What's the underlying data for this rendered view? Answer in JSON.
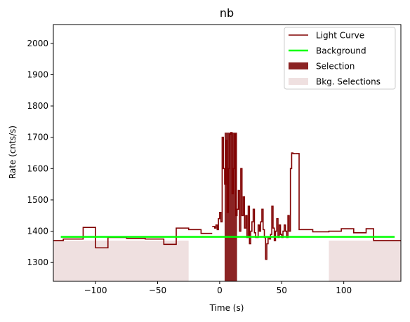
{
  "chart_data": {
    "type": "line",
    "title": "nb",
    "xlabel": "Time (s)",
    "ylabel": "Rate (cnts/s)",
    "xlim": [
      -134,
      146
    ],
    "ylim": [
      1240,
      2060
    ],
    "xticks": [
      -100,
      -50,
      0,
      50,
      100
    ],
    "xtick_labels": [
      "−100",
      "−50",
      "0",
      "50",
      "100"
    ],
    "yticks": [
      1300,
      1400,
      1500,
      1600,
      1700,
      1800,
      1900,
      2000
    ],
    "ytick_labels": [
      "1300",
      "1400",
      "1500",
      "1600",
      "1700",
      "1800",
      "1900",
      "2000"
    ],
    "grid": false,
    "legend_position": "top-right",
    "colors": {
      "light_curve": "#800000",
      "background": "#00ff00",
      "selection": "#8b2323",
      "bkg_selection": "#efe0e0",
      "axes": "#000000"
    },
    "legend": [
      {
        "label": "Light Curve",
        "kind": "line",
        "color": "#800000"
      },
      {
        "label": "Background",
        "kind": "line",
        "color": "#00ff00"
      },
      {
        "label": "Selection",
        "kind": "patch",
        "color": "#8b2323"
      },
      {
        "label": "Bkg. Selections",
        "kind": "patch",
        "color": "#efe0e0"
      }
    ],
    "series": [
      {
        "name": "Light Curve",
        "step": "post",
        "x": [
          -134,
          -126,
          -110,
          -100,
          -90,
          -75,
          -60,
          -45,
          -35,
          -25,
          -15,
          -6
        ],
        "y": [
          1370,
          1375,
          1412,
          1347,
          1380,
          1377,
          1375,
          1358,
          1410,
          1405,
          1393,
          1393
        ],
        "x2": [
          -6,
          -4,
          -3,
          -2,
          -1,
          0,
          1,
          2,
          3,
          4,
          5,
          6,
          7,
          8,
          9,
          10,
          11,
          12,
          13,
          14,
          15,
          16,
          17,
          18,
          19,
          20,
          21,
          22,
          23,
          24,
          25,
          26,
          27,
          28,
          29,
          30,
          31,
          32,
          33,
          34,
          35,
          36,
          37,
          38,
          39,
          40,
          41,
          42,
          43,
          44,
          45,
          46,
          47,
          48,
          49,
          50,
          51,
          52,
          53,
          54,
          55,
          56,
          57,
          58,
          59,
          60,
          61
        ],
        "y2": [
          1415,
          1410,
          1420,
          1405,
          1440,
          1460,
          1430,
          1700,
          1600,
          1550,
          1690,
          1460,
          1600,
          1710,
          1715,
          1520,
          1600,
          1710,
          1450,
          1470,
          1530,
          1400,
          1600,
          1450,
          1510,
          1410,
          1450,
          1380,
          1480,
          1360,
          1400,
          1430,
          1470,
          1395,
          1380,
          1380,
          1420,
          1400,
          1430,
          1470,
          1405,
          1380,
          1310,
          1360,
          1380,
          1375,
          1390,
          1480,
          1410,
          1370,
          1400,
          1440,
          1380,
          1420,
          1390,
          1380,
          1400,
          1420,
          1400,
          1380,
          1450,
          1400,
          1600,
          1650,
          1648,
          1648,
          1648
        ],
        "x3": [
          61,
          64,
          75,
          88,
          98,
          108,
          118,
          124,
          134,
          146
        ],
        "y3": [
          1648,
          1405,
          1398,
          1400,
          1408,
          1395,
          1408,
          1370,
          1370,
          1370
        ]
      },
      {
        "name": "Background",
        "x": [
          -128,
          141
        ],
        "y": [
          1382,
          1382
        ]
      }
    ],
    "selection": {
      "x_start": 4,
      "x_end": 14
    },
    "bkg_selections": [
      {
        "x_start": -134,
        "x_end": -25
      },
      {
        "x_start": 88,
        "x_end": 146
      }
    ]
  }
}
